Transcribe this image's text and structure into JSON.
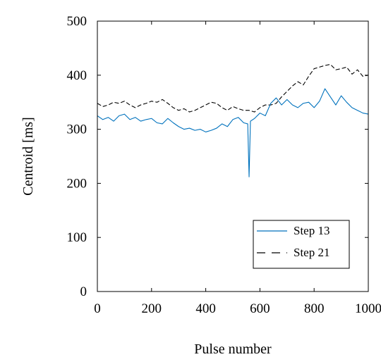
{
  "chart_data": {
    "type": "line",
    "title": "",
    "xlabel": "Pulse number",
    "ylabel": "Centroid [ms]",
    "xlim": [
      0,
      1000
    ],
    "ylim": [
      0,
      500
    ],
    "xticks": [
      "0",
      "200",
      "400",
      "600",
      "800",
      "1000"
    ],
    "yticks": [
      "0",
      "100",
      "200",
      "300",
      "400",
      "500"
    ],
    "grid": false,
    "legend_position": "bottom-right",
    "series": [
      {
        "name": "Step 13",
        "color": "#0072bd",
        "dash": "solid",
        "x": [
          0,
          20,
          40,
          60,
          80,
          100,
          120,
          140,
          160,
          180,
          200,
          220,
          240,
          260,
          280,
          300,
          320,
          340,
          360,
          380,
          400,
          420,
          440,
          460,
          480,
          500,
          520,
          540,
          555,
          560,
          565,
          580,
          600,
          620,
          640,
          660,
          680,
          700,
          720,
          740,
          760,
          780,
          800,
          820,
          840,
          860,
          880,
          900,
          920,
          940,
          960,
          980,
          1000
        ],
        "y": [
          325,
          318,
          322,
          315,
          325,
          328,
          318,
          322,
          315,
          318,
          320,
          312,
          310,
          320,
          312,
          305,
          300,
          302,
          298,
          300,
          295,
          298,
          302,
          310,
          305,
          318,
          322,
          312,
          310,
          212,
          315,
          320,
          330,
          325,
          348,
          358,
          345,
          355,
          345,
          340,
          348,
          350,
          340,
          352,
          375,
          360,
          345,
          362,
          350,
          340,
          335,
          330,
          328
        ]
      },
      {
        "name": "Step 21",
        "color": "#000000",
        "dash": "dashed",
        "x": [
          0,
          20,
          40,
          60,
          80,
          100,
          120,
          140,
          160,
          180,
          200,
          220,
          240,
          260,
          280,
          300,
          320,
          340,
          360,
          380,
          400,
          420,
          440,
          460,
          480,
          500,
          520,
          540,
          560,
          580,
          600,
          620,
          640,
          660,
          680,
          700,
          720,
          740,
          760,
          780,
          800,
          820,
          840,
          860,
          880,
          900,
          920,
          940,
          960,
          980,
          1000
        ],
        "y": [
          348,
          342,
          345,
          350,
          348,
          352,
          345,
          340,
          345,
          348,
          352,
          350,
          355,
          348,
          340,
          335,
          338,
          332,
          335,
          340,
          345,
          350,
          348,
          340,
          335,
          342,
          338,
          335,
          335,
          332,
          340,
          345,
          345,
          348,
          360,
          370,
          380,
          388,
          382,
          398,
          412,
          415,
          418,
          420,
          410,
          412,
          415,
          402,
          410,
          398,
          400
        ]
      }
    ]
  }
}
